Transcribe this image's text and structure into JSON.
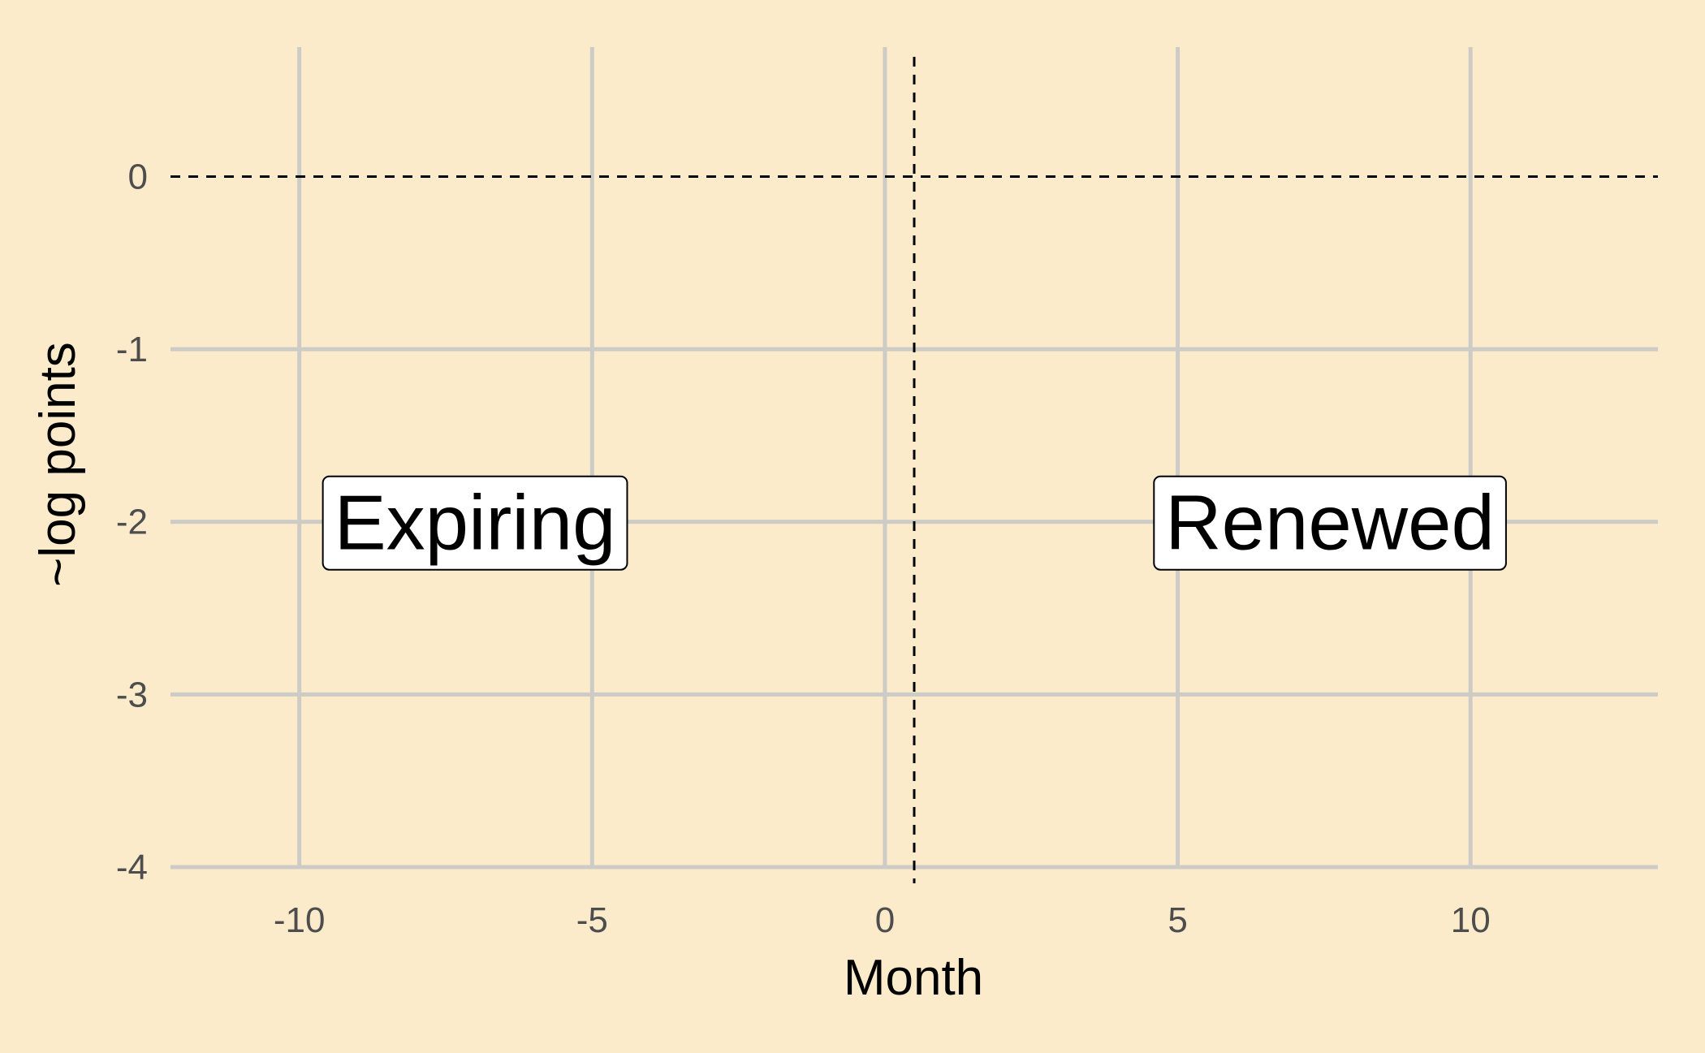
{
  "chart_data": {
    "type": "line",
    "title": "",
    "xlabel": "Month",
    "ylabel": "~log points",
    "xlim": [
      -12.2,
      13.2
    ],
    "ylim": [
      -4.0,
      0.75
    ],
    "x_ticks": [
      -10,
      -5,
      0,
      5,
      10
    ],
    "y_ticks": [
      0,
      -1,
      -2,
      -3,
      -4
    ],
    "x_tick_labels": [
      "-10",
      "-5",
      "0",
      "5",
      "10"
    ],
    "y_tick_labels": [
      "0",
      "-1",
      "-2",
      "-3",
      "-4"
    ],
    "grid": true,
    "legend": "none",
    "reference_lines": [
      {
        "orientation": "horizontal",
        "y": 0,
        "style": "dashed"
      },
      {
        "orientation": "vertical",
        "x": 0.5,
        "style": "dashed"
      }
    ],
    "annotations": [
      {
        "text": "Expiring",
        "x": -7,
        "y": -2
      },
      {
        "text": "Renewed",
        "x": 7.6,
        "y": -2
      }
    ],
    "series": []
  },
  "colors": {
    "background": "#FCEBCB",
    "grid": "#CDCBC6",
    "reference_line": "#000000",
    "tick_text": "#4D4D4D"
  }
}
